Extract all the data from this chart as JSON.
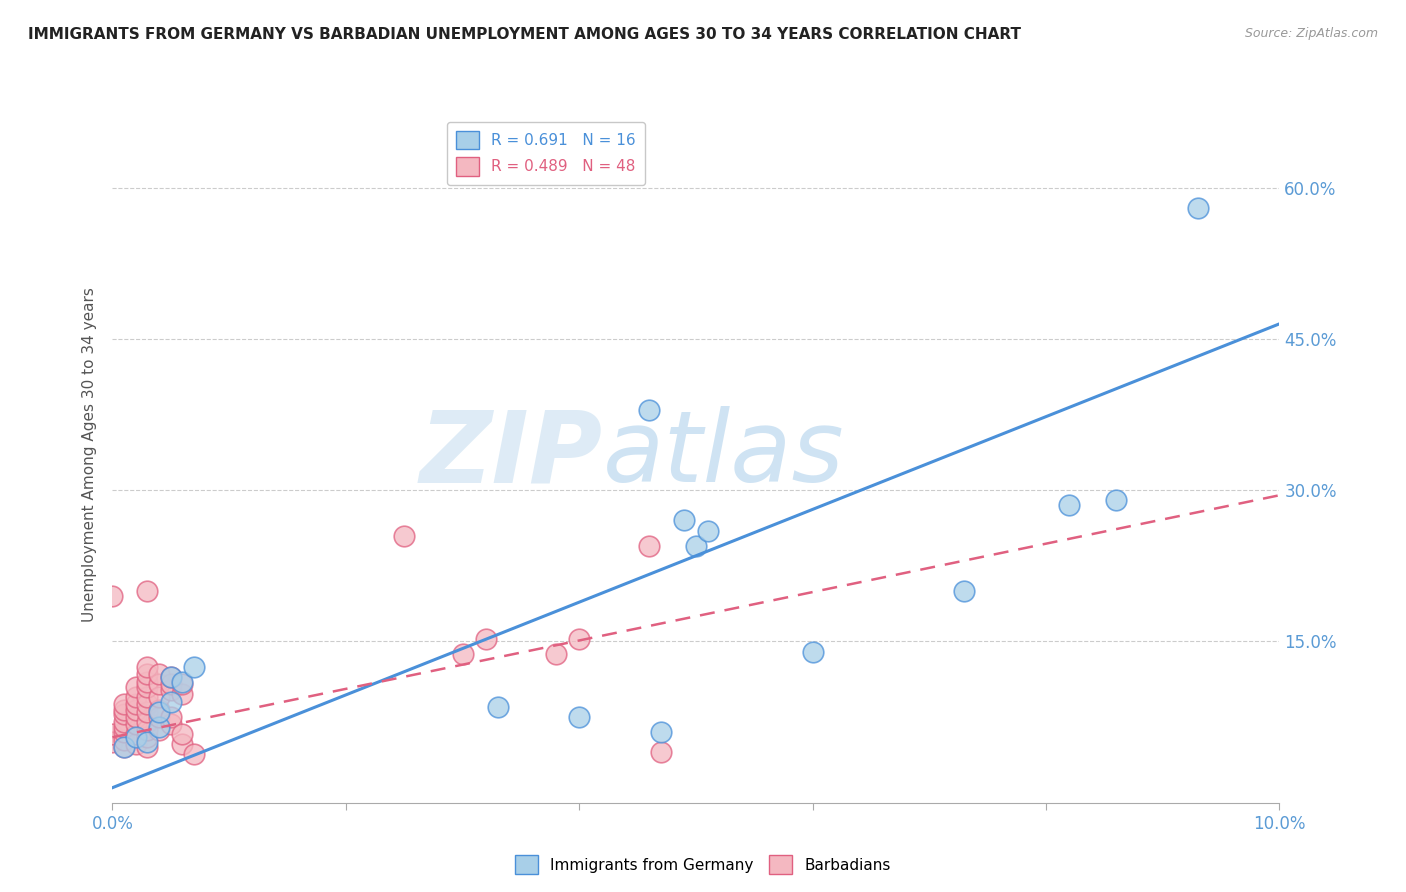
{
  "title": "IMMIGRANTS FROM GERMANY VS BARBADIAN UNEMPLOYMENT AMONG AGES 30 TO 34 YEARS CORRELATION CHART",
  "source": "Source: ZipAtlas.com",
  "ylabel": "Unemployment Among Ages 30 to 34 years",
  "ytick_labels": [
    "60.0%",
    "45.0%",
    "30.0%",
    "15.0%"
  ],
  "ytick_values": [
    0.6,
    0.45,
    0.3,
    0.15
  ],
  "xlim": [
    0.0,
    0.1
  ],
  "ylim": [
    -0.01,
    0.68
  ],
  "blue_color": "#a8cfe8",
  "pink_color": "#f4b8c1",
  "line_blue": "#4a90d9",
  "line_pink": "#e06080",
  "watermark_zip": "ZIP",
  "watermark_atlas": "atlas",
  "blue_scatter": [
    [
      0.001,
      0.045
    ],
    [
      0.002,
      0.055
    ],
    [
      0.003,
      0.05
    ],
    [
      0.004,
      0.065
    ],
    [
      0.004,
      0.08
    ],
    [
      0.005,
      0.09
    ],
    [
      0.005,
      0.115
    ],
    [
      0.006,
      0.11
    ],
    [
      0.007,
      0.125
    ],
    [
      0.033,
      0.085
    ],
    [
      0.04,
      0.075
    ],
    [
      0.046,
      0.38
    ],
    [
      0.049,
      0.27
    ],
    [
      0.05,
      0.245
    ],
    [
      0.051,
      0.26
    ],
    [
      0.06,
      0.14
    ],
    [
      0.073,
      0.2
    ],
    [
      0.082,
      0.285
    ],
    [
      0.086,
      0.29
    ],
    [
      0.093,
      0.58
    ],
    [
      0.047,
      0.06
    ]
  ],
  "pink_scatter": [
    [
      0.0,
      0.05
    ],
    [
      0.0,
      0.058
    ],
    [
      0.001,
      0.045
    ],
    [
      0.001,
      0.052
    ],
    [
      0.001,
      0.06
    ],
    [
      0.001,
      0.065
    ],
    [
      0.001,
      0.07
    ],
    [
      0.001,
      0.078
    ],
    [
      0.001,
      0.082
    ],
    [
      0.001,
      0.088
    ],
    [
      0.002,
      0.048
    ],
    [
      0.002,
      0.058
    ],
    [
      0.002,
      0.068
    ],
    [
      0.002,
      0.075
    ],
    [
      0.002,
      0.082
    ],
    [
      0.002,
      0.088
    ],
    [
      0.002,
      0.095
    ],
    [
      0.002,
      0.105
    ],
    [
      0.003,
      0.045
    ],
    [
      0.003,
      0.055
    ],
    [
      0.003,
      0.062
    ],
    [
      0.003,
      0.07
    ],
    [
      0.003,
      0.08
    ],
    [
      0.003,
      0.088
    ],
    [
      0.003,
      0.095
    ],
    [
      0.003,
      0.105
    ],
    [
      0.003,
      0.11
    ],
    [
      0.003,
      0.118
    ],
    [
      0.003,
      0.125
    ],
    [
      0.003,
      0.2
    ],
    [
      0.004,
      0.062
    ],
    [
      0.004,
      0.075
    ],
    [
      0.004,
      0.082
    ],
    [
      0.004,
      0.095
    ],
    [
      0.004,
      0.108
    ],
    [
      0.004,
      0.118
    ],
    [
      0.005,
      0.068
    ],
    [
      0.005,
      0.075
    ],
    [
      0.005,
      0.102
    ],
    [
      0.005,
      0.108
    ],
    [
      0.005,
      0.115
    ],
    [
      0.006,
      0.048
    ],
    [
      0.006,
      0.058
    ],
    [
      0.006,
      0.098
    ],
    [
      0.006,
      0.108
    ],
    [
      0.007,
      0.038
    ],
    [
      0.0,
      0.195
    ],
    [
      0.025,
      0.255
    ],
    [
      0.03,
      0.138
    ],
    [
      0.032,
      0.152
    ],
    [
      0.038,
      0.138
    ],
    [
      0.04,
      0.152
    ],
    [
      0.046,
      0.245
    ],
    [
      0.047,
      0.04
    ]
  ],
  "blue_line_x": [
    0.0,
    0.1
  ],
  "blue_line_y": [
    0.005,
    0.465
  ],
  "pink_line_x": [
    0.0,
    0.1
  ],
  "pink_line_y": [
    0.055,
    0.295
  ]
}
